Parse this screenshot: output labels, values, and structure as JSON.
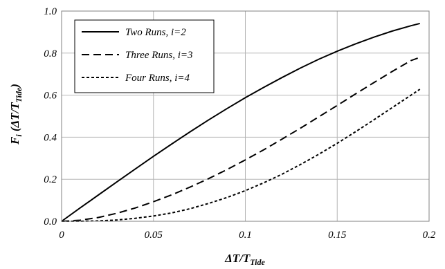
{
  "chart_data": {
    "type": "line",
    "title": "",
    "xlabel": {
      "main": "ΔT/T",
      "sub": "Tide"
    },
    "ylabel": {
      "main": "F",
      "sub_i": "i",
      "mid": " (ΔT/T",
      "sub": "Tide",
      "end": ")"
    },
    "xlim": [
      0,
      0.2
    ],
    "ylim": [
      0,
      1.0
    ],
    "x_ticks": [
      0,
      0.05,
      0.1,
      0.15,
      0.2
    ],
    "x_tick_labels": [
      "0",
      "0.05",
      "0.1",
      "0.15",
      "0.2"
    ],
    "y_ticks": [
      0,
      0.2,
      0.4,
      0.6,
      0.8,
      1.0
    ],
    "y_tick_labels": [
      "0.0",
      "0.2",
      "0.4",
      "0.6",
      "0.8",
      "1.0"
    ],
    "grid": true,
    "legend_position": "top-left",
    "series": [
      {
        "name": "Two Runs, i=2",
        "style": "solid",
        "x": [
          0,
          0.01,
          0.02,
          0.03,
          0.04,
          0.05,
          0.06,
          0.07,
          0.08,
          0.09,
          0.1,
          0.11,
          0.12,
          0.13,
          0.14,
          0.15,
          0.16,
          0.17,
          0.18,
          0.19,
          0.195
        ],
        "y": [
          0,
          0.063,
          0.125,
          0.187,
          0.248,
          0.309,
          0.368,
          0.426,
          0.482,
          0.536,
          0.588,
          0.637,
          0.684,
          0.729,
          0.771,
          0.809,
          0.844,
          0.876,
          0.905,
          0.93,
          0.941
        ]
      },
      {
        "name": "Three Runs, i=3",
        "style": "dashed",
        "x": [
          0,
          0.01,
          0.02,
          0.03,
          0.04,
          0.05,
          0.06,
          0.07,
          0.08,
          0.09,
          0.1,
          0.11,
          0.12,
          0.13,
          0.14,
          0.15,
          0.16,
          0.17,
          0.18,
          0.19,
          0.195
        ],
        "y": [
          0,
          0.005,
          0.018,
          0.038,
          0.063,
          0.093,
          0.126,
          0.163,
          0.203,
          0.246,
          0.292,
          0.34,
          0.391,
          0.443,
          0.497,
          0.551,
          0.606,
          0.66,
          0.713,
          0.764,
          0.78
        ]
      },
      {
        "name": "Four Runs, i=4",
        "style": "dotted",
        "x": [
          0,
          0.01,
          0.02,
          0.03,
          0.04,
          0.05,
          0.06,
          0.07,
          0.08,
          0.09,
          0.1,
          0.11,
          0.12,
          0.13,
          0.14,
          0.15,
          0.16,
          0.17,
          0.18,
          0.19,
          0.195
        ],
        "y": [
          0,
          0.0005,
          0.002,
          0.006,
          0.014,
          0.025,
          0.04,
          0.06,
          0.085,
          0.113,
          0.146,
          0.183,
          0.224,
          0.27,
          0.319,
          0.371,
          0.426,
          0.483,
          0.541,
          0.599,
          0.628
        ]
      }
    ]
  }
}
